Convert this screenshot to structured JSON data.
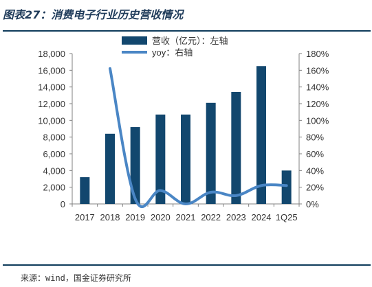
{
  "title": "图表27：消费电子行业历史营收情况",
  "source": "来源：wind，国金证券研究所",
  "chart_data": {
    "type": "bar",
    "categories": [
      "2017",
      "2018",
      "2019",
      "2020",
      "2021",
      "2022",
      "2023",
      "2024",
      "1Q25"
    ],
    "series": [
      {
        "name": "营收（亿元）：左轴",
        "type": "bar",
        "axis": "left",
        "color": "#12476e",
        "values": [
          3200,
          8400,
          9200,
          10700,
          10700,
          12100,
          13400,
          16500,
          4000
        ]
      },
      {
        "name": "yoy：右轴",
        "type": "line",
        "axis": "right",
        "color": "#4a86c5",
        "values": [
          null,
          162,
          6,
          16,
          0,
          14,
          10,
          22,
          22
        ]
      }
    ],
    "left_axis": {
      "ylim": [
        0,
        18000
      ],
      "ticks": [
        "0",
        "2,000",
        "4,000",
        "6,000",
        "8,000",
        "10,000",
        "12,000",
        "14,000",
        "16,000",
        "18,000"
      ]
    },
    "right_axis": {
      "ylim": [
        0,
        180
      ],
      "ticks": [
        "0%",
        "20%",
        "40%",
        "60%",
        "80%",
        "100%",
        "120%",
        "140%",
        "160%",
        "180%"
      ]
    },
    "grid": false,
    "legend_placement": "top-center"
  }
}
